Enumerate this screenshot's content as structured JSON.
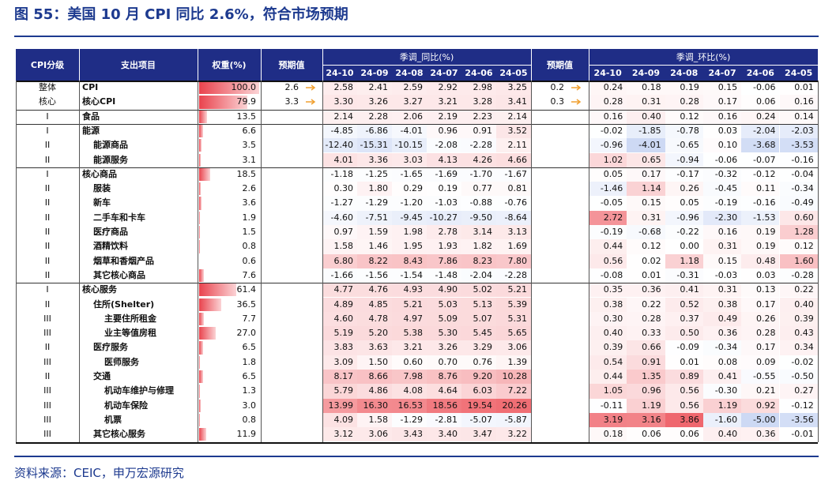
{
  "title": "图 55：美国 10 月 CPI 同比 2.6%，符合市场预期",
  "table": {
    "header": {
      "level": "CPI分级",
      "item": "支出项目",
      "weight": "权重(%)",
      "expected": "预期值",
      "yoy": "季调_同比(%)",
      "mom": "季调_环比(%)",
      "months": [
        "24-10",
        "24-09",
        "24-08",
        "24-07",
        "24-06",
        "24-05"
      ]
    },
    "rows": [
      {
        "level": "整体",
        "item": "CPI",
        "weight": "100.0",
        "yoy_expected": "2.6",
        "yoy": [
          "2.58",
          "2.41",
          "2.59",
          "2.92",
          "2.98",
          "3.25"
        ],
        "mom_expected": "0.2",
        "mom": [
          "0.24",
          "0.18",
          "0.19",
          "0.15",
          "-0.06",
          "0.01"
        ]
      },
      {
        "level": "核心",
        "item": "核心CPI",
        "weight": "79.9",
        "yoy_expected": "3.3",
        "yoy": [
          "3.30",
          "3.26",
          "3.27",
          "3.21",
          "3.28",
          "3.41"
        ],
        "mom_expected": "0.3",
        "mom": [
          "0.28",
          "0.31",
          "0.28",
          "0.17",
          "0.06",
          "0.16"
        ]
      },
      {
        "level": "I",
        "item": "食品",
        "weight": "13.5",
        "yoy": [
          "2.14",
          "2.28",
          "2.06",
          "2.19",
          "2.23",
          "2.14"
        ],
        "mom": [
          "0.16",
          "0.40",
          "0.12",
          "0.16",
          "0.24",
          "0.14"
        ]
      },
      {
        "level": "I",
        "item": "能源",
        "weight": "6.6",
        "yoy": [
          "-4.85",
          "-6.86",
          "-4.01",
          "0.96",
          "0.91",
          "3.52"
        ],
        "mom": [
          "-0.02",
          "-1.85",
          "-0.78",
          "0.03",
          "-2.04",
          "-2.03"
        ]
      },
      {
        "level": "II",
        "item": "能源商品",
        "weight": "3.5",
        "yoy": [
          "-12.40",
          "-15.31",
          "-10.15",
          "-2.08",
          "-2.28",
          "2.11"
        ],
        "mom": [
          "-0.96",
          "-4.01",
          "-0.65",
          "0.10",
          "-3.68",
          "-3.53"
        ]
      },
      {
        "level": "II",
        "item": "能源服务",
        "weight": "3.1",
        "yoy": [
          "4.01",
          "3.36",
          "3.03",
          "4.13",
          "4.26",
          "4.66"
        ],
        "mom": [
          "1.02",
          "0.65",
          "-0.94",
          "-0.06",
          "-0.07",
          "-0.16"
        ]
      },
      {
        "level": "I",
        "item": "核心商品",
        "weight": "18.5",
        "yoy": [
          "-1.18",
          "-1.25",
          "-1.65",
          "-1.69",
          "-1.70",
          "-1.67"
        ],
        "mom": [
          "0.05",
          "0.17",
          "-0.17",
          "-0.32",
          "-0.12",
          "-0.04"
        ]
      },
      {
        "level": "II",
        "item": "服装",
        "weight": "2.6",
        "yoy": [
          "0.30",
          "1.80",
          "0.29",
          "0.19",
          "0.77",
          "0.81"
        ],
        "mom": [
          "-1.46",
          "1.14",
          "0.26",
          "-0.45",
          "0.11",
          "-0.34"
        ]
      },
      {
        "level": "II",
        "item": "新车",
        "weight": "3.6",
        "yoy": [
          "-1.27",
          "-1.29",
          "-1.20",
          "-1.03",
          "-0.88",
          "-0.76"
        ],
        "mom": [
          "-0.05",
          "0.15",
          "0.05",
          "-0.19",
          "-0.16",
          "-0.49"
        ]
      },
      {
        "level": "II",
        "item": "二手车和卡车",
        "weight": "1.9",
        "yoy": [
          "-4.60",
          "-7.51",
          "-9.45",
          "-10.27",
          "-9.50",
          "-8.64"
        ],
        "mom": [
          "2.72",
          "0.31",
          "-0.96",
          "-2.30",
          "-1.53",
          "0.60"
        ]
      },
      {
        "level": "II",
        "item": "医疗商品",
        "weight": "1.5",
        "yoy": [
          "0.97",
          "1.59",
          "1.98",
          "2.78",
          "3.14",
          "3.13"
        ],
        "mom": [
          "-0.19",
          "-0.68",
          "-0.22",
          "0.16",
          "0.19",
          "1.28"
        ]
      },
      {
        "level": "II",
        "item": "酒精饮料",
        "weight": "0.8",
        "yoy": [
          "1.58",
          "1.46",
          "1.95",
          "1.93",
          "1.82",
          "1.69"
        ],
        "mom": [
          "0.44",
          "0.12",
          "0.00",
          "0.31",
          "0.19",
          "0.12"
        ]
      },
      {
        "level": "II",
        "item": "烟草和香烟产品",
        "weight": "0.6",
        "yoy": [
          "6.80",
          "8.22",
          "8.43",
          "7.86",
          "8.23",
          "7.80"
        ],
        "mom": [
          "0.56",
          "0.02",
          "1.18",
          "0.15",
          "0.48",
          "1.60"
        ]
      },
      {
        "level": "II",
        "item": "其它核心商品",
        "weight": "7.6",
        "yoy": [
          "-1.66",
          "-1.56",
          "-1.54",
          "-1.48",
          "-2.04",
          "-2.28"
        ],
        "mom": [
          "-0.08",
          "0.01",
          "-0.31",
          "-0.03",
          "0.03",
          "-0.28"
        ]
      },
      {
        "level": "I",
        "item": "核心服务",
        "weight": "61.4",
        "yoy": [
          "4.77",
          "4.76",
          "4.93",
          "4.90",
          "5.02",
          "5.21"
        ],
        "mom": [
          "0.35",
          "0.36",
          "0.41",
          "0.31",
          "0.13",
          "0.22"
        ]
      },
      {
        "level": "II",
        "item": "住所(Shelter)",
        "weight": "36.5",
        "yoy": [
          "4.89",
          "4.85",
          "5.21",
          "5.03",
          "5.13",
          "5.39"
        ],
        "mom": [
          "0.38",
          "0.22",
          "0.52",
          "0.38",
          "0.17",
          "0.40"
        ]
      },
      {
        "level": "III",
        "item": "主要住所租金",
        "weight": "7.7",
        "yoy": [
          "4.60",
          "4.78",
          "4.97",
          "5.09",
          "5.07",
          "5.31"
        ],
        "mom": [
          "0.30",
          "0.28",
          "0.37",
          "0.49",
          "0.26",
          "0.39"
        ]
      },
      {
        "level": "III",
        "item": "业主等值房租",
        "weight": "27.0",
        "yoy": [
          "5.19",
          "5.20",
          "5.38",
          "5.30",
          "5.45",
          "5.65"
        ],
        "mom": [
          "0.40",
          "0.33",
          "0.50",
          "0.36",
          "0.28",
          "0.43"
        ]
      },
      {
        "level": "II",
        "item": "医疗服务",
        "weight": "6.5",
        "yoy": [
          "3.83",
          "3.63",
          "3.21",
          "3.26",
          "3.29",
          "3.06"
        ],
        "mom": [
          "0.39",
          "0.66",
          "-0.09",
          "-0.34",
          "0.17",
          "0.34"
        ]
      },
      {
        "level": "III",
        "item": "医师服务",
        "weight": "1.8",
        "yoy": [
          "3.09",
          "1.50",
          "0.60",
          "0.70",
          "0.76",
          "1.39"
        ],
        "mom": [
          "0.54",
          "0.91",
          "0.01",
          "0.08",
          "0.09",
          "-0.02"
        ]
      },
      {
        "level": "II",
        "item": "交通",
        "weight": "6.5",
        "yoy": [
          "8.17",
          "8.66",
          "7.98",
          "8.76",
          "9.20",
          "10.28"
        ],
        "mom": [
          "0.44",
          "1.35",
          "0.89",
          "0.41",
          "-0.55",
          "-0.50"
        ]
      },
      {
        "level": "III",
        "item": "机动车维护与修理",
        "weight": "1.3",
        "yoy": [
          "5.79",
          "4.86",
          "4.08",
          "4.64",
          "6.03",
          "7.22"
        ],
        "mom": [
          "1.05",
          "0.96",
          "0.56",
          "-0.30",
          "0.21",
          "0.27"
        ]
      },
      {
        "level": "III",
        "item": "机动车保险",
        "weight": "3.0",
        "yoy": [
          "13.99",
          "16.30",
          "16.53",
          "18.56",
          "19.54",
          "20.26"
        ],
        "mom": [
          "-0.11",
          "1.19",
          "0.56",
          "1.19",
          "0.92",
          "-0.12"
        ]
      },
      {
        "level": "III",
        "item": "机票",
        "weight": "0.8",
        "yoy": [
          "4.09",
          "1.58",
          "-1.29",
          "-2.81",
          "-5.07",
          "-5.87"
        ],
        "mom": [
          "3.19",
          "3.16",
          "3.86",
          "-1.60",
          "-5.00",
          "-3.56"
        ]
      },
      {
        "level": "III",
        "item": "其它核心服务",
        "weight": "11.9",
        "yoy": [
          "3.12",
          "3.06",
          "3.43",
          "3.40",
          "3.47",
          "3.22"
        ],
        "mom": [
          "0.18",
          "0.06",
          "0.06",
          "0.40",
          "0.36",
          "-0.01"
        ]
      }
    ]
  },
  "source": "资料来源：CEIC，申万宏源研究"
}
